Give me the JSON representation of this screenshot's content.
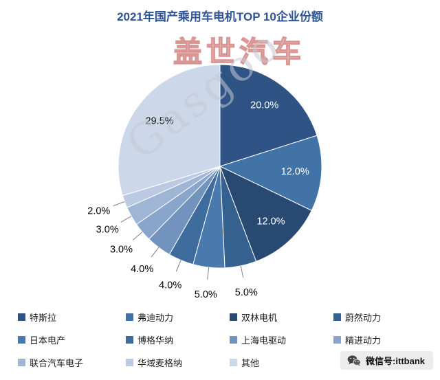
{
  "chart_data": {
    "type": "pie",
    "title": "2021年国产乘用车电机TOP 10企业份额",
    "direction": "clockwise",
    "start_angle_deg": 0,
    "legend_position": "bottom",
    "legend_columns": 4,
    "slices": [
      {
        "name": "特斯拉",
        "value": 20.0,
        "display": "20.0%",
        "color": "#2E5384",
        "label_placement": "inside",
        "label_color": "#FFFFFF"
      },
      {
        "name": "弗迪动力",
        "value": 12.0,
        "display": "12.0%",
        "color": "#4273A6",
        "label_placement": "inside",
        "label_color": "#FFFFFF"
      },
      {
        "name": "双林电机",
        "value": 12.0,
        "display": "12.0%",
        "color": "#284A72",
        "label_placement": "inside",
        "label_color": "#FFFFFF"
      },
      {
        "name": "蔚然动力",
        "value": 5.0,
        "display": "5.0%",
        "color": "#35618F",
        "label_placement": "outside",
        "label_color": "#000000"
      },
      {
        "name": "日本电产",
        "value": 5.0,
        "display": "5.0%",
        "color": "#4A7AAD",
        "label_placement": "outside",
        "label_color": "#000000"
      },
      {
        "name": "博格华纳",
        "value": 4.0,
        "display": "4.0%",
        "color": "#3E6C9D",
        "label_placement": "outside",
        "label_color": "#000000"
      },
      {
        "name": "上海电驱动",
        "value": 4.0,
        "display": "4.0%",
        "color": "#7293BE",
        "label_placement": "outside",
        "label_color": "#000000"
      },
      {
        "name": "精进动力",
        "value": 3.0,
        "display": "3.0%",
        "color": "#8AA5CB",
        "label_placement": "outside",
        "label_color": "#000000"
      },
      {
        "name": "联合汽车电子",
        "value": 3.0,
        "display": "3.0%",
        "color": "#9FB5D6",
        "label_placement": "outside",
        "label_color": "#000000"
      },
      {
        "name": "华域麦格纳",
        "value": 2.0,
        "display": "2.0%",
        "color": "#BBC9E2",
        "label_placement": "outside",
        "label_color": "#000000"
      },
      {
        "name": "其他",
        "value": 29.5,
        "display": "29.5%",
        "color": "#CDD7EA",
        "label_placement": "inside",
        "label_color": "#1A1A1A"
      }
    ]
  },
  "watermarks": {
    "english": "Gasgoo",
    "chinese": "盖世汽车"
  },
  "footer": {
    "wechat_text": "微信号:ittbank"
  },
  "colors": {
    "title": "#2F5496",
    "leader_line": "#808080",
    "background": "#FFFFFF"
  }
}
